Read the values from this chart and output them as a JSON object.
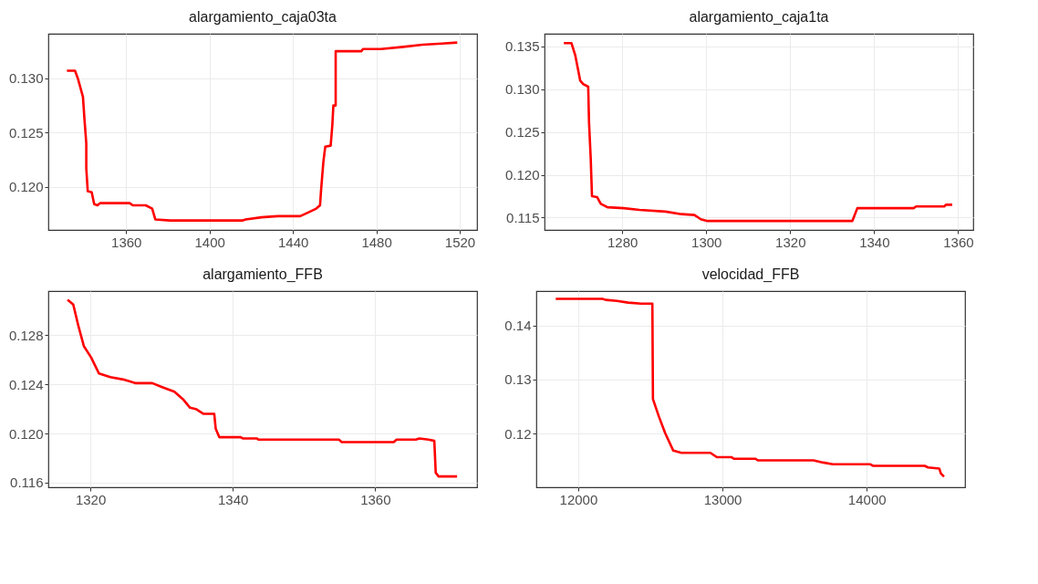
{
  "chart_data": [
    {
      "type": "line",
      "title": "alargamiento_caja03ta",
      "color": "#ff0000",
      "grid": true,
      "xlim": [
        1322.7,
        1528.3
      ],
      "ylim": [
        0.11603,
        0.13411
      ],
      "xticks": [
        1360,
        1400,
        1440,
        1480,
        1520
      ],
      "yticks": [
        {
          "value": 0.12,
          "label": "0.120"
        },
        {
          "value": 0.125,
          "label": "0.125"
        },
        {
          "value": 0.13,
          "label": "0.130"
        }
      ],
      "x": [
        1331.6,
        1335.5,
        1337,
        1339.3,
        1340,
        1340.9,
        1340.9,
        1341.6,
        1343.5,
        1344.7,
        1346.3,
        1347.5,
        1361.7,
        1363.2,
        1369.4,
        1372.5,
        1374,
        1381,
        1415.7,
        1417.3,
        1425,
        1432.7,
        1443.5,
        1448,
        1451.2,
        1453,
        1453.5,
        1454.6,
        1455.5,
        1458.1,
        1458.9,
        1459.4,
        1460.5,
        1460.5,
        1472.8,
        1473.6,
        1482.1,
        1492.9,
        1502.1,
        1511.4,
        1518.8
      ],
      "values": [
        0.1307,
        0.1307,
        0.1299,
        0.1283,
        0.1263,
        0.124,
        0.1217,
        0.1196,
        0.1195,
        0.1184,
        0.1183,
        0.1185,
        0.1185,
        0.1183,
        0.1183,
        0.118,
        0.117,
        0.1169,
        0.1169,
        0.117,
        0.1172,
        0.1173,
        0.1173,
        0.1177,
        0.118,
        0.1183,
        0.1197,
        0.1223,
        0.1237,
        0.1238,
        0.1257,
        0.1275,
        0.1275,
        0.1325,
        0.1325,
        0.1327,
        0.1327,
        0.1329,
        0.1331,
        0.1332,
        0.1333
      ]
    },
    {
      "type": "line",
      "title": "alargamiento_caja1ta",
      "color": "#ff0000",
      "grid": true,
      "xlim": [
        1261.5,
        1363.6
      ],
      "ylim": [
        0.11355,
        0.13649
      ],
      "xticks": [
        1280,
        1300,
        1320,
        1340,
        1360
      ],
      "yticks": [
        {
          "value": 0.115,
          "label": "0.115"
        },
        {
          "value": 0.12,
          "label": "0.120"
        },
        {
          "value": 0.125,
          "label": "0.125"
        },
        {
          "value": 0.13,
          "label": "0.130"
        },
        {
          "value": 0.135,
          "label": "0.135"
        }
      ],
      "x": [
        1266.1,
        1267.9,
        1268.8,
        1269.6,
        1270,
        1270.7,
        1271.9,
        1272.1,
        1272.5,
        1272.8,
        1274,
        1274.9,
        1276.5,
        1280.3,
        1284.1,
        1290.3,
        1294.1,
        1297.2,
        1298.7,
        1300.3,
        1334.8,
        1336,
        1349.4,
        1350,
        1356.7,
        1357.1,
        1358.6
      ],
      "values": [
        0.1354,
        0.1354,
        0.134,
        0.132,
        0.131,
        0.1306,
        0.1303,
        0.1261,
        0.1219,
        0.1175,
        0.1174,
        0.1166,
        0.1162,
        0.1161,
        0.1159,
        0.1157,
        0.1154,
        0.1153,
        0.1148,
        0.1146,
        0.1146,
        0.1161,
        0.1161,
        0.1163,
        0.1163,
        0.1165,
        0.1165
      ]
    },
    {
      "type": "line",
      "title": "alargamiento_FFB",
      "color": "#ff0000",
      "grid": true,
      "xlim": [
        1314.1,
        1374.3
      ],
      "ylim": [
        0.11562,
        0.1316
      ],
      "xticks": [
        1320,
        1340,
        1360
      ],
      "yticks": [
        {
          "value": 0.116,
          "label": "0.116"
        },
        {
          "value": 0.12,
          "label": "0.120"
        },
        {
          "value": 0.124,
          "label": "0.124"
        },
        {
          "value": 0.128,
          "label": "0.128"
        }
      ],
      "x": [
        1316.8,
        1317.6,
        1318.3,
        1319.1,
        1320.1,
        1321.2,
        1322.8,
        1324.6,
        1326.4,
        1328.7,
        1330,
        1331.8,
        1333,
        1334,
        1334.8,
        1335.9,
        1337.4,
        1337.6,
        1338.1,
        1341.1,
        1341.4,
        1343.4,
        1343.6,
        1354.9,
        1355.3,
        1362.6,
        1363,
        1365.7,
        1366.2,
        1367.5,
        1368.3,
        1368.5,
        1368.9,
        1371.5
      ],
      "values": [
        0.1309,
        0.1305,
        0.1288,
        0.1271,
        0.1262,
        0.1249,
        0.1246,
        0.1244,
        0.1241,
        0.1241,
        0.1238,
        0.1234,
        0.1228,
        0.1221,
        0.122,
        0.1216,
        0.1216,
        0.1204,
        0.1197,
        0.1197,
        0.1196,
        0.1196,
        0.1195,
        0.1195,
        0.1193,
        0.1193,
        0.1195,
        0.1195,
        0.1196,
        0.1195,
        0.1194,
        0.1168,
        0.1165,
        0.1165
      ]
    },
    {
      "type": "line",
      "title": "velocidad_FFB",
      "color": "#ff0000",
      "grid": true,
      "xlim": [
        11709.5,
        14681.6
      ],
      "ylim": [
        0.11014,
        0.14632
      ],
      "xticks": [
        12000,
        13000,
        14000
      ],
      "yticks": [
        0.12,
        0.13,
        0.14
      ],
      "x": [
        11844,
        12168,
        12190,
        12268,
        12346,
        12436,
        12514,
        12518,
        12559,
        12603,
        12659,
        12715,
        12916,
        12961,
        13061,
        13079,
        13229,
        13245,
        13631,
        13698,
        13765,
        14022,
        14045,
        14402,
        14425,
        14503,
        14514,
        14536
      ],
      "values": [
        0.1449,
        0.1449,
        0.1447,
        0.1445,
        0.1442,
        0.144,
        0.144,
        0.1264,
        0.1232,
        0.1201,
        0.1169,
        0.1165,
        0.1165,
        0.1157,
        0.1157,
        0.1154,
        0.1154,
        0.1151,
        0.1151,
        0.1147,
        0.1144,
        0.1144,
        0.1141,
        0.1141,
        0.1138,
        0.1136,
        0.1127,
        0.1121
      ]
    }
  ]
}
